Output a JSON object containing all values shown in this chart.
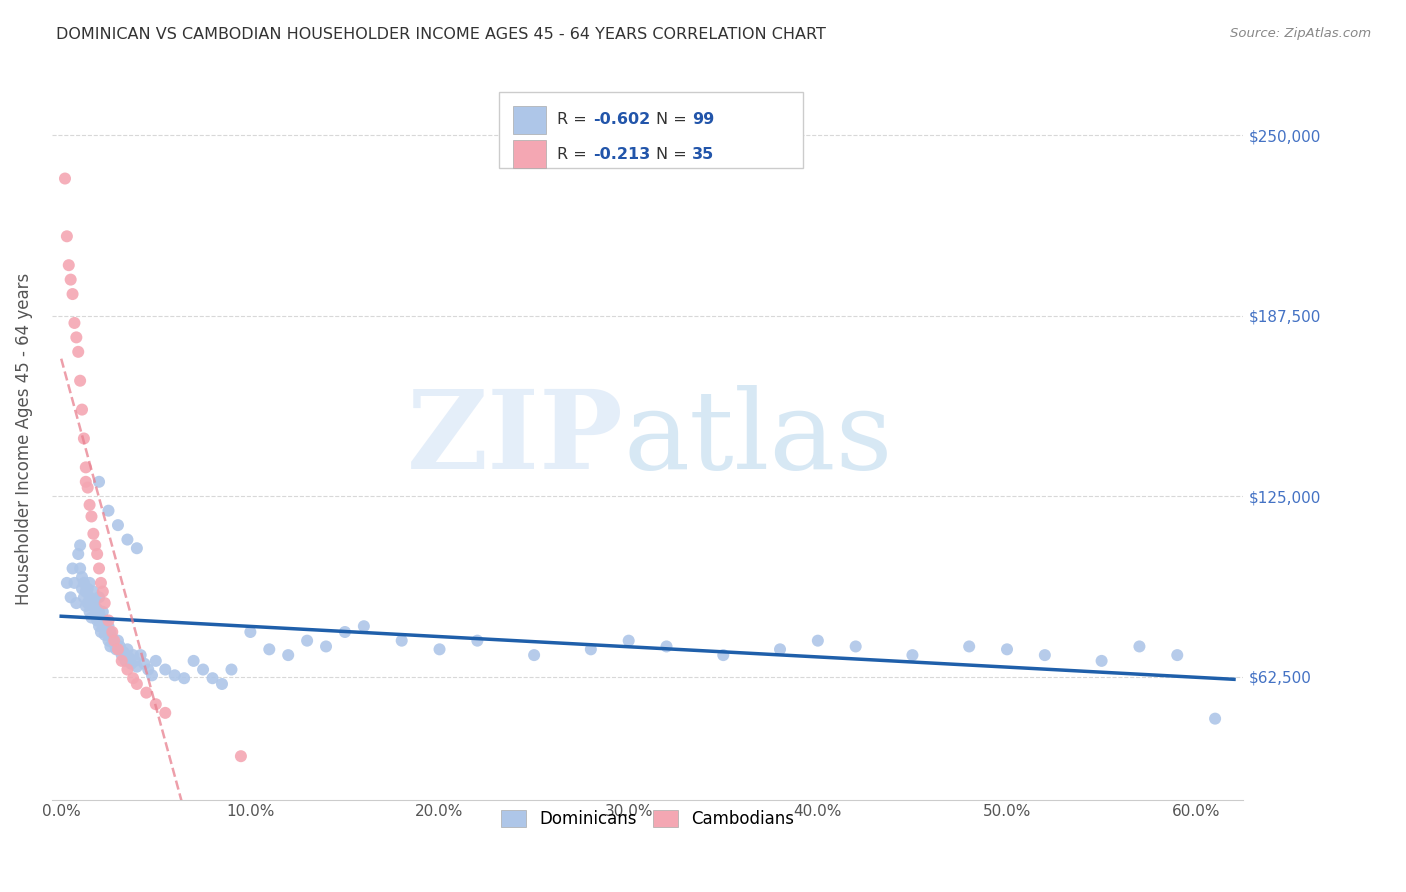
{
  "title": "DOMINICAN VS CAMBODIAN HOUSEHOLDER INCOME AGES 45 - 64 YEARS CORRELATION CHART",
  "source": "Source: ZipAtlas.com",
  "ylabel": "Householder Income Ages 45 - 64 years",
  "xlabel_ticks": [
    "0.0%",
    "10.0%",
    "20.0%",
    "30.0%",
    "40.0%",
    "50.0%",
    "60.0%"
  ],
  "xlabel_vals": [
    0.0,
    0.1,
    0.2,
    0.3,
    0.4,
    0.5,
    0.6
  ],
  "ylabel_ticks": [
    "$62,500",
    "$125,000",
    "$187,500",
    "$250,000"
  ],
  "ylabel_vals": [
    62500,
    125000,
    187500,
    250000
  ],
  "ylim": [
    20000,
    270000
  ],
  "xlim": [
    -0.005,
    0.625
  ],
  "dominicans_color": "#aec6e8",
  "cambodians_color": "#f4a7b3",
  "dominicans_line_color": "#1f5faa",
  "cambodians_line_color": "#e87f8e",
  "background_color": "#ffffff",
  "grid_color": "#d8d8d8",
  "title_color": "#333333",
  "axis_label_color": "#555555",
  "right_tick_color": "#4472c4",
  "dominicans_x": [
    0.003,
    0.005,
    0.006,
    0.007,
    0.008,
    0.009,
    0.01,
    0.01,
    0.011,
    0.011,
    0.012,
    0.012,
    0.013,
    0.013,
    0.014,
    0.014,
    0.015,
    0.015,
    0.015,
    0.016,
    0.016,
    0.017,
    0.017,
    0.018,
    0.018,
    0.019,
    0.019,
    0.02,
    0.02,
    0.02,
    0.021,
    0.021,
    0.022,
    0.022,
    0.023,
    0.023,
    0.024,
    0.025,
    0.025,
    0.026,
    0.026,
    0.027,
    0.028,
    0.029,
    0.03,
    0.031,
    0.032,
    0.033,
    0.034,
    0.035,
    0.036,
    0.037,
    0.038,
    0.039,
    0.04,
    0.042,
    0.044,
    0.046,
    0.048,
    0.05,
    0.055,
    0.06,
    0.065,
    0.07,
    0.075,
    0.08,
    0.085,
    0.09,
    0.1,
    0.11,
    0.12,
    0.13,
    0.14,
    0.15,
    0.16,
    0.18,
    0.2,
    0.22,
    0.25,
    0.28,
    0.3,
    0.32,
    0.35,
    0.38,
    0.4,
    0.42,
    0.45,
    0.48,
    0.5,
    0.52,
    0.55,
    0.57,
    0.59,
    0.61,
    0.02,
    0.025,
    0.03,
    0.035,
    0.04
  ],
  "dominicans_y": [
    95000,
    90000,
    100000,
    95000,
    88000,
    105000,
    100000,
    108000,
    93000,
    97000,
    95000,
    90000,
    92000,
    87000,
    88000,
    93000,
    90000,
    85000,
    95000,
    88000,
    83000,
    87000,
    92000,
    84000,
    89000,
    82000,
    86000,
    80000,
    85000,
    90000,
    83000,
    78000,
    80000,
    85000,
    82000,
    77000,
    79000,
    80000,
    75000,
    78000,
    73000,
    76000,
    74000,
    72000,
    75000,
    73000,
    70000,
    71000,
    68000,
    72000,
    69000,
    67000,
    70000,
    68000,
    66000,
    70000,
    67000,
    65000,
    63000,
    68000,
    65000,
    63000,
    62000,
    68000,
    65000,
    62000,
    60000,
    65000,
    78000,
    72000,
    70000,
    75000,
    73000,
    78000,
    80000,
    75000,
    72000,
    75000,
    70000,
    72000,
    75000,
    73000,
    70000,
    72000,
    75000,
    73000,
    70000,
    73000,
    72000,
    70000,
    68000,
    73000,
    70000,
    48000,
    130000,
    120000,
    115000,
    110000,
    107000
  ],
  "cambodians_x": [
    0.002,
    0.003,
    0.004,
    0.005,
    0.006,
    0.007,
    0.008,
    0.009,
    0.01,
    0.011,
    0.012,
    0.013,
    0.013,
    0.014,
    0.015,
    0.016,
    0.017,
    0.018,
    0.019,
    0.02,
    0.021,
    0.022,
    0.023,
    0.025,
    0.027,
    0.028,
    0.03,
    0.032,
    0.035,
    0.038,
    0.04,
    0.045,
    0.05,
    0.055,
    0.095
  ],
  "cambodians_y": [
    235000,
    215000,
    205000,
    200000,
    195000,
    185000,
    180000,
    175000,
    165000,
    155000,
    145000,
    135000,
    130000,
    128000,
    122000,
    118000,
    112000,
    108000,
    105000,
    100000,
    95000,
    92000,
    88000,
    82000,
    78000,
    75000,
    72000,
    68000,
    65000,
    62000,
    60000,
    57000,
    53000,
    50000,
    35000
  ]
}
